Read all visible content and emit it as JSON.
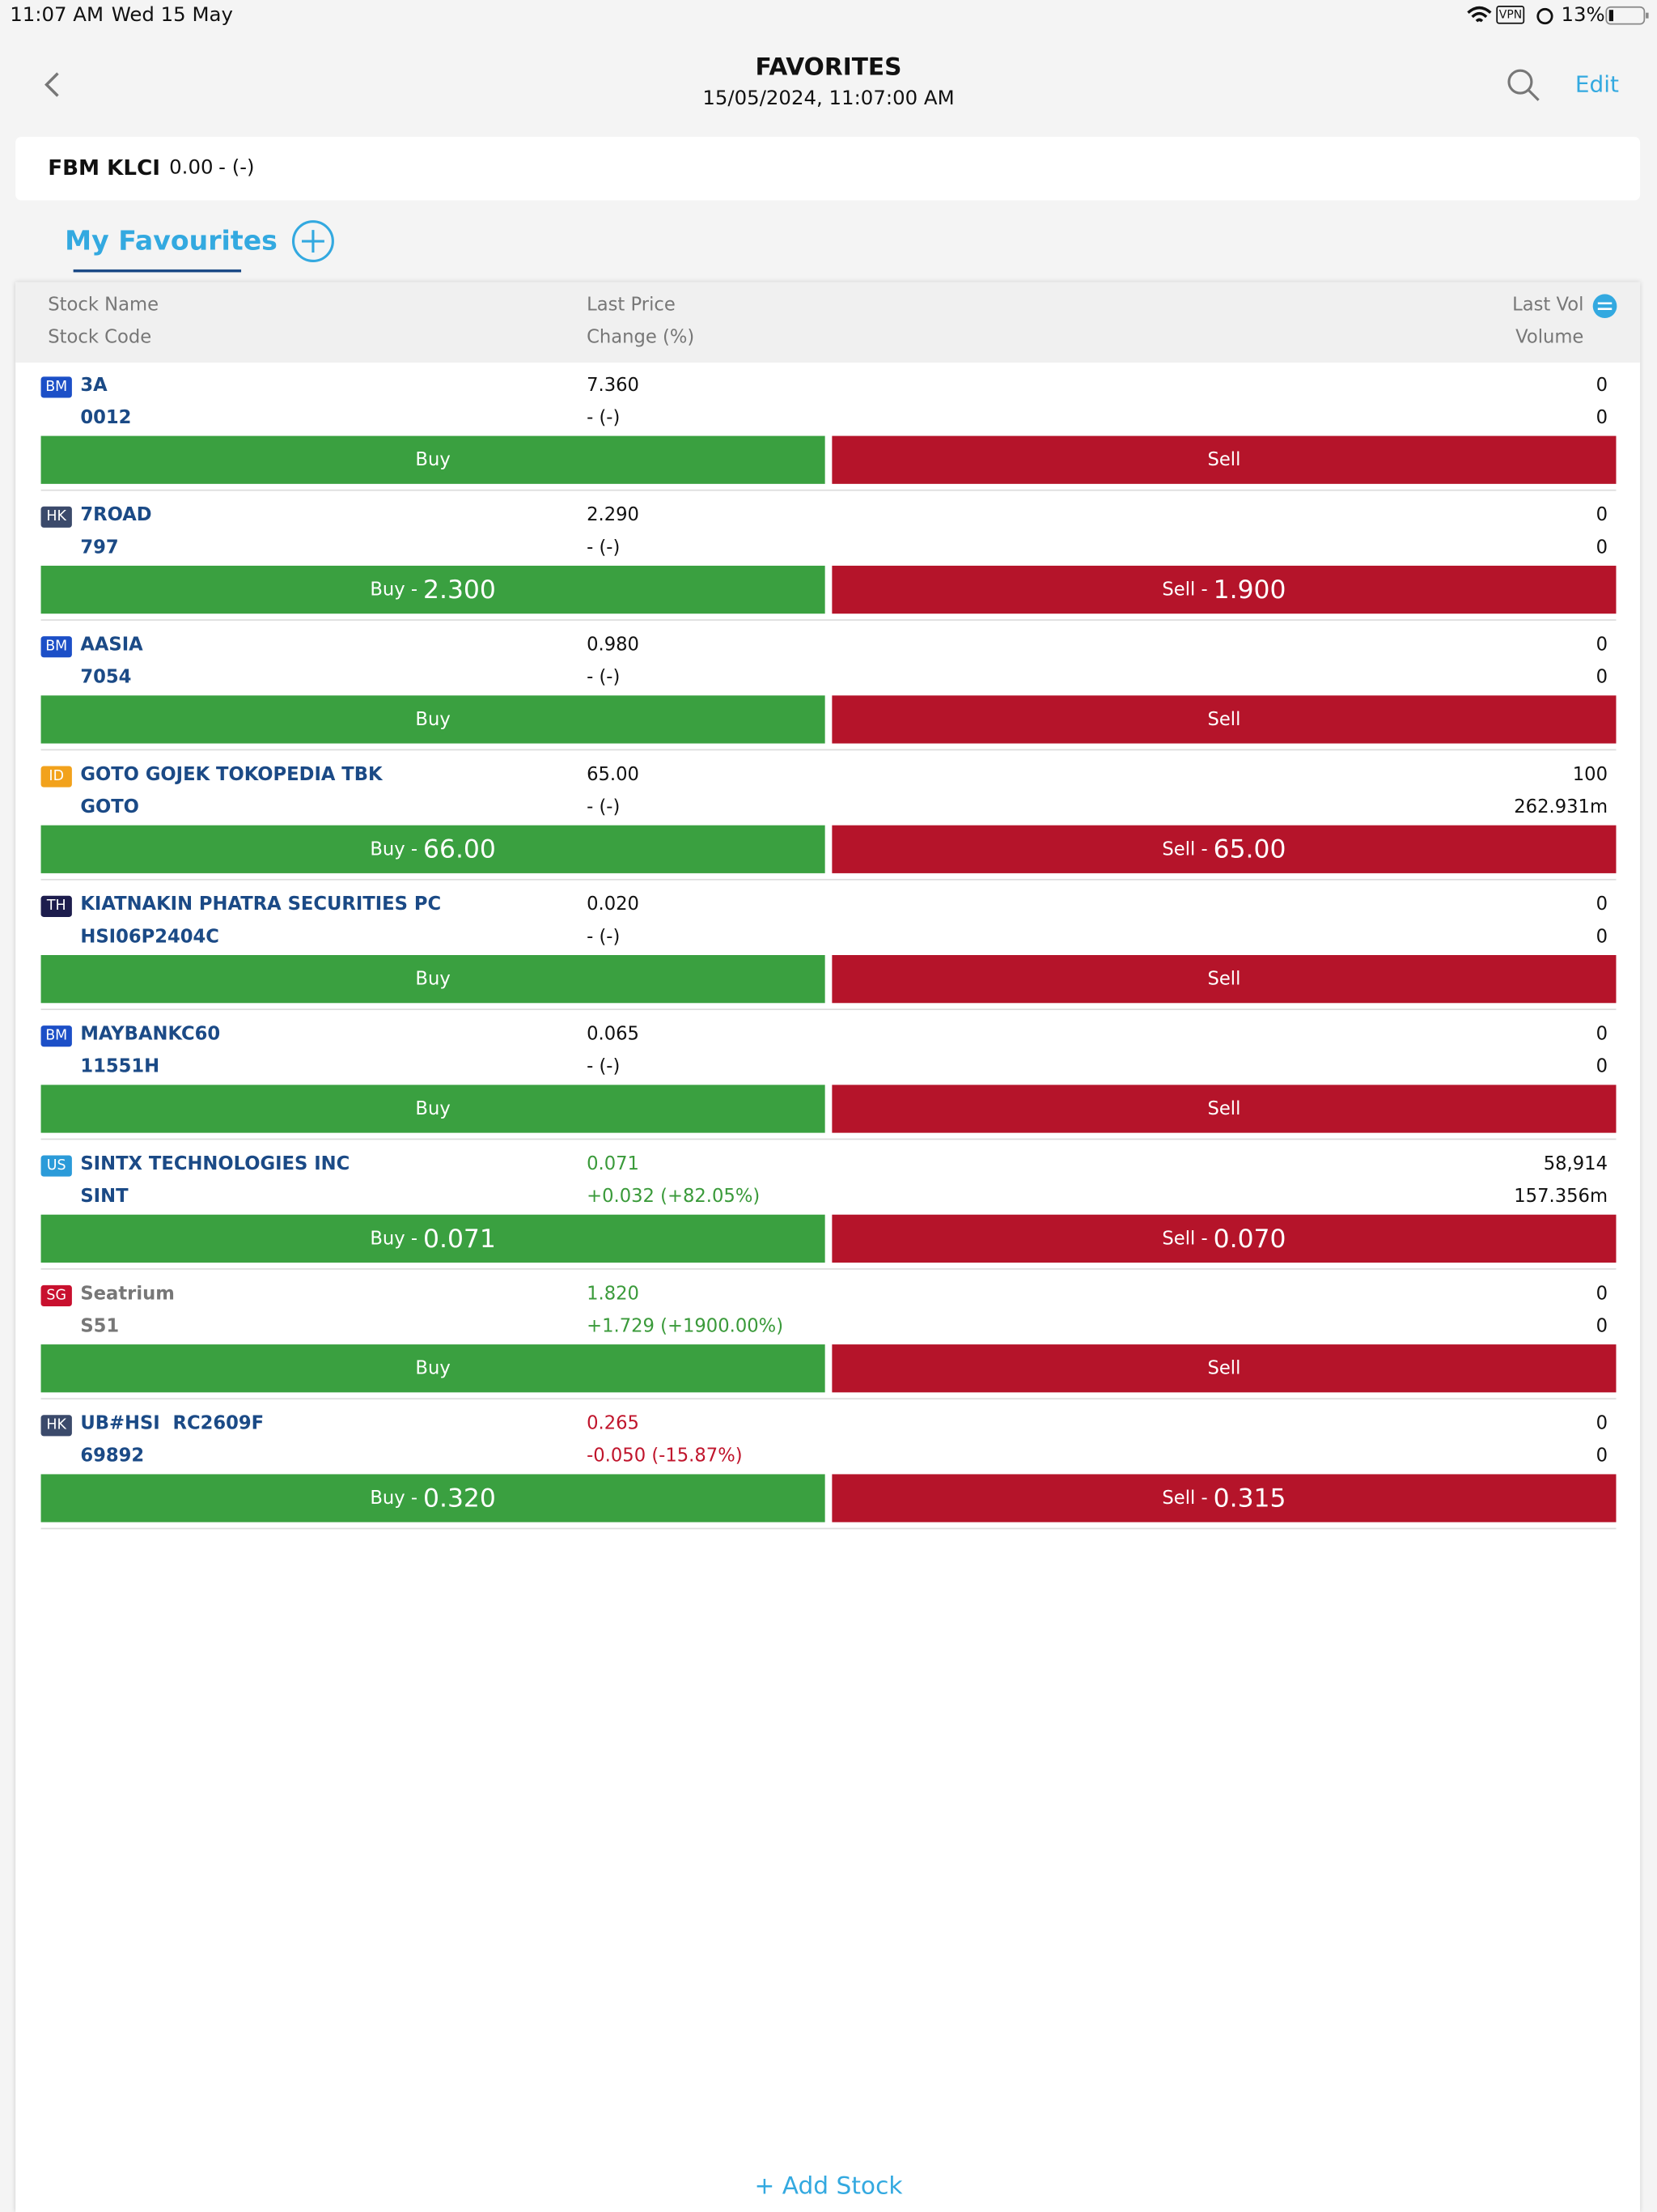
{
  "status_bar": {
    "time": "11:07 AM",
    "date": "Wed 15 May",
    "vpn": "VPN",
    "battery": "13%"
  },
  "header": {
    "title": "FAVORITES",
    "subtitle": "15/05/2024, 11:07:00 AM",
    "edit": "Edit"
  },
  "index": {
    "name": "FBM KLCI",
    "value": "0.00",
    "change": "- (-)"
  },
  "tabs": {
    "active": "My Favourites"
  },
  "table": {
    "columns": {
      "name": "Stock Name",
      "code": "Stock Code",
      "price": "Last Price",
      "change": "Change (%)",
      "last_vol": "Last Vol",
      "volume": "Volume"
    },
    "rows": [
      {
        "exchange": "BM",
        "badge_color": "#1c4fc7",
        "name": "3A",
        "code": "0012",
        "price": "7.360",
        "change": "- (-)",
        "last_vol": "0",
        "volume": "0",
        "buy": {
          "label": "Buy"
        },
        "sell": {
          "label": "Sell"
        }
      },
      {
        "exchange": "HK",
        "badge_color": "#3b4a6b",
        "name": "7ROAD",
        "code": "797",
        "price": "2.290",
        "change": "- (-)",
        "last_vol": "0",
        "volume": "0",
        "buy": {
          "label": "Buy -",
          "price": "2.300"
        },
        "sell": {
          "label": "Sell -",
          "price": "1.900"
        }
      },
      {
        "exchange": "BM",
        "badge_color": "#1c4fc7",
        "name": "AASIA",
        "code": "7054",
        "price": "0.980",
        "change": "- (-)",
        "last_vol": "0",
        "volume": "0",
        "buy": {
          "label": "Buy"
        },
        "sell": {
          "label": "Sell"
        }
      },
      {
        "exchange": "ID",
        "badge_color": "#f2a21c",
        "name": "GOTO GOJEK TOKOPEDIA TBK",
        "code": "GOTO",
        "price": "65.00",
        "change": "- (-)",
        "last_vol": "100",
        "volume": "262.931m",
        "buy": {
          "label": "Buy -",
          "price": "66.00"
        },
        "sell": {
          "label": "Sell -",
          "price": "65.00"
        }
      },
      {
        "exchange": "TH",
        "badge_color": "#1d1d4d",
        "name": "KIATNAKIN PHATRA SECURITIES PC",
        "code": "HSI06P2404C",
        "price": "0.020",
        "change": "- (-)",
        "last_vol": "0",
        "volume": "0",
        "buy": {
          "label": "Buy"
        },
        "sell": {
          "label": "Sell"
        }
      },
      {
        "exchange": "BM",
        "badge_color": "#1c4fc7",
        "name": "MAYBANKC60",
        "code": "11551H",
        "price": "0.065",
        "change": "- (-)",
        "last_vol": "0",
        "volume": "0",
        "buy": {
          "label": "Buy"
        },
        "sell": {
          "label": "Sell"
        }
      },
      {
        "exchange": "US",
        "badge_color": "#2b9bd9",
        "name": "SINTX TECHNOLOGIES INC",
        "code": "SINT",
        "price": "0.071",
        "change": "+0.032 (+82.05%)",
        "price_color": "#3a9a3a",
        "last_vol": "58,914",
        "volume": "157.356m",
        "buy": {
          "label": "Buy -",
          "price": "0.071"
        },
        "sell": {
          "label": "Sell -",
          "price": "0.070"
        }
      },
      {
        "exchange": "SG",
        "badge_color": "#c8102e",
        "name": "Seatrium",
        "code": "S51",
        "name_color": "#777777",
        "price": "1.820",
        "change": "+1.729 (+1900.00%)",
        "price_color": "#3a9a3a",
        "last_vol": "0",
        "volume": "0",
        "buy": {
          "label": "Buy"
        },
        "sell": {
          "label": "Sell"
        }
      },
      {
        "exchange": "HK",
        "badge_color": "#3b4a6b",
        "name": "UB#HSI  RC2609F",
        "code": "69892",
        "price": "0.265",
        "change": "-0.050 (-15.87%)",
        "price_color": "#c0152c",
        "last_vol": "0",
        "volume": "0",
        "buy": {
          "label": "Buy -",
          "price": "0.320"
        },
        "sell": {
          "label": "Sell -",
          "price": "0.315"
        }
      }
    ]
  },
  "footer": {
    "add": "+ Add Stock"
  }
}
